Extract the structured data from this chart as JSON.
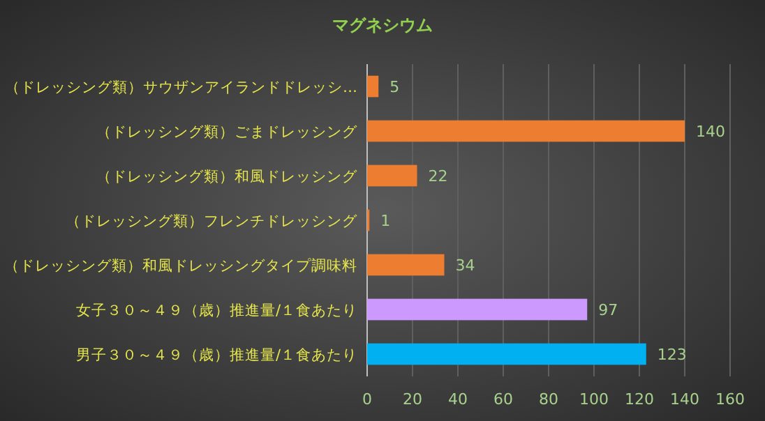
{
  "chart_data": {
    "type": "bar",
    "orientation": "horizontal",
    "title": "マグネシウム",
    "categories": [
      "（ドレッシング類）サウザンアイランドドレッシ…",
      "（ドレッシング類）ごまドレッシング",
      "（ドレッシング類）和風ドレッシング",
      "（ドレッシング類）フレンチドレッシング",
      "（ドレッシング類）和風ドレッシングタイプ調味料",
      "女子３０～４９（歳）推進量/１食あたり",
      "男子３０～４９（歳）推進量/１食あたり"
    ],
    "values": [
      5,
      140,
      22,
      1,
      34,
      97,
      123
    ],
    "colors": [
      "#ed7d31",
      "#ed7d31",
      "#ed7d31",
      "#ed7d31",
      "#ed7d31",
      "#cc99ff",
      "#00b0f0"
    ],
    "xlim": [
      0,
      160
    ],
    "xticks": [
      0,
      20,
      40,
      60,
      80,
      100,
      120,
      140,
      160
    ],
    "grid": "x",
    "data_labels": true
  }
}
